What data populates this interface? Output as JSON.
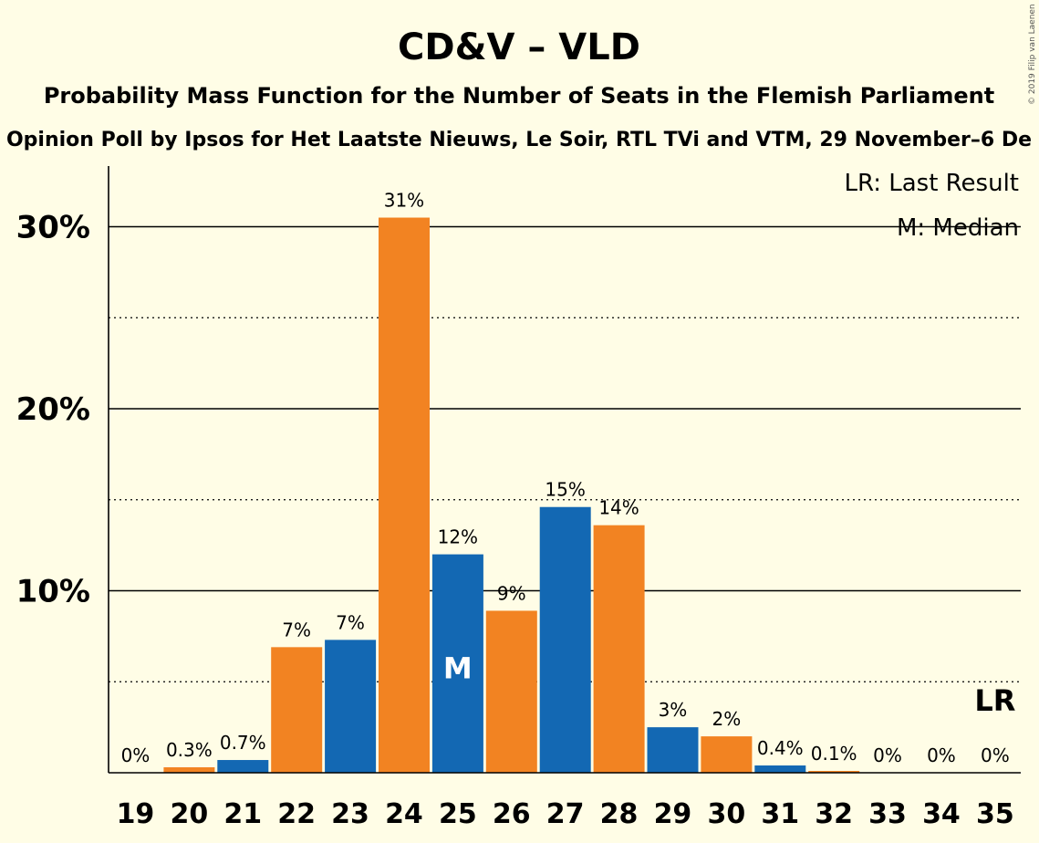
{
  "colors": {
    "background": "#FFFDE6",
    "cdv": "#F28322",
    "vld": "#1368B3",
    "text": "#1a1a1a"
  },
  "chart_data": {
    "type": "bar",
    "title": "CD&V – VLD",
    "subtitle": "Probability Mass Function for the Number of Seats in the Flemish Parliament",
    "subtitle2": "Opinion Poll by Ipsos for Het Laatste Nieuws, Le Soir, RTL TVi and VTM, 29 November–6 De",
    "copyright": "© 2019 Filip van Laenen",
    "categories": [
      "19",
      "20",
      "21",
      "22",
      "23",
      "24",
      "25",
      "26",
      "27",
      "28",
      "29",
      "30",
      "31",
      "32",
      "33",
      "34",
      "35"
    ],
    "values": [
      0,
      0.3,
      0.7,
      6.9,
      7.3,
      30.5,
      12.0,
      8.9,
      14.6,
      13.6,
      2.5,
      2.0,
      0.4,
      0.1,
      0,
      0,
      0
    ],
    "labels": [
      "0%",
      "0.3%",
      "0.7%",
      "7%",
      "7%",
      "31%",
      "12%",
      "9%",
      "15%",
      "14%",
      "3%",
      "2%",
      "0.4%",
      "0.1%",
      "0%",
      "0%",
      "0%"
    ],
    "bar_colors": [
      "orange",
      "orange",
      "blue",
      "orange",
      "blue",
      "orange",
      "blue",
      "orange",
      "blue",
      "orange",
      "blue",
      "orange",
      "blue",
      "orange",
      "blue",
      "orange",
      "blue"
    ],
    "ylim": [
      0,
      33
    ],
    "yticks": [
      10,
      20,
      30
    ],
    "ytick_labels": [
      "10%",
      "20%",
      "30%"
    ],
    "minor_gridlines": [
      5,
      15,
      25
    ],
    "median_seat": "25",
    "median_marker": "M",
    "last_result_seat": "35",
    "last_result_marker": "LR",
    "legend": {
      "last_result": "LR: Last Result",
      "median": "M: Median"
    },
    "xlabel": "",
    "ylabel": ""
  }
}
